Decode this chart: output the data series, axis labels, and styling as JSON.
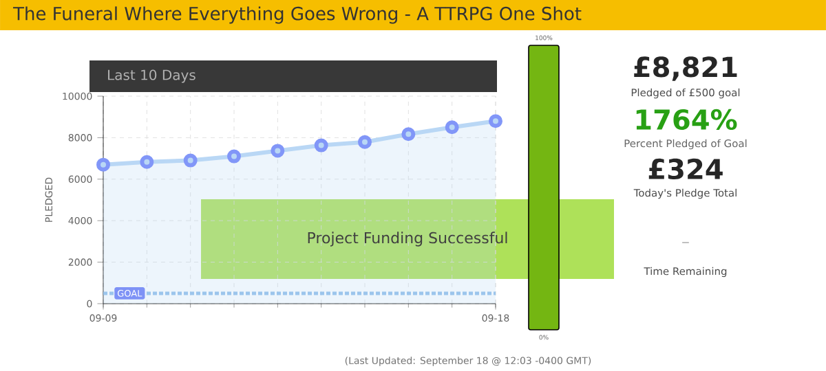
{
  "chart_data": {
    "type": "area",
    "title": "The Funeral Where Everything Goes Wrong - A TTRPG One Shot",
    "subtitle": "Last 10 Days",
    "ylabel": "PLEDGED",
    "categories": [
      "09-09",
      null,
      null,
      null,
      null,
      null,
      null,
      null,
      null,
      "09-18"
    ],
    "series": [
      {
        "color": "#b9d7f5",
        "values": [
          6700,
          6830,
          6900,
          7100,
          7370,
          7630,
          7790,
          8170,
          8500,
          8800
        ]
      }
    ],
    "ylim": [
      0,
      10000
    ],
    "yticks": [
      0,
      2000,
      4000,
      6000,
      8000,
      10000
    ],
    "grid": true,
    "marker": "circle",
    "ref_lines": [
      {
        "axis": "y",
        "value": 500,
        "label": "GOAL",
        "color": "#9cc5ec",
        "line_style": "dashed"
      }
    ],
    "annotations": [
      "Project Funding Successful",
      "100%",
      "0%",
      "£8,821",
      "Pledged of £500 goal",
      "1764%",
      "Percent Pledged of Goal",
      "£324",
      "Today's Pledge Total",
      "–",
      "Time Remaining",
      "(Last Updated: September 18 @ 12:03 -0400 GMT)"
    ]
  }
}
